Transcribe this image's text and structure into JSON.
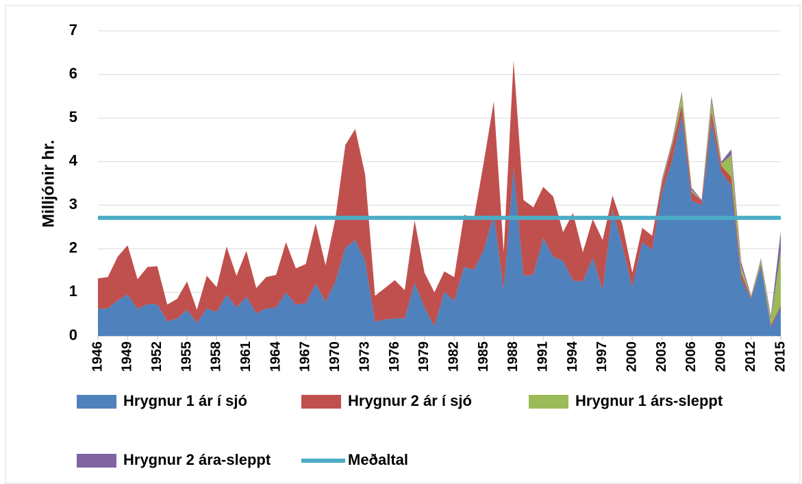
{
  "chart_data": {
    "type": "stacked-area",
    "ylabel": "Milljónir hr.",
    "x": [
      1946,
      1947,
      1948,
      1949,
      1950,
      1951,
      1952,
      1953,
      1954,
      1955,
      1956,
      1957,
      1958,
      1959,
      1960,
      1961,
      1962,
      1963,
      1964,
      1965,
      1966,
      1967,
      1968,
      1969,
      1970,
      1971,
      1972,
      1973,
      1974,
      1975,
      1976,
      1977,
      1978,
      1979,
      1980,
      1981,
      1982,
      1983,
      1984,
      1985,
      1986,
      1987,
      1988,
      1989,
      1990,
      1991,
      1992,
      1993,
      1994,
      1995,
      1996,
      1997,
      1998,
      1999,
      2000,
      2001,
      2002,
      2003,
      2004,
      2005,
      2006,
      2007,
      2008,
      2009,
      2010,
      2011,
      2012,
      2013,
      2014,
      2015
    ],
    "xlim": [
      1946,
      2015
    ],
    "xticks": [
      1946,
      1949,
      1952,
      1955,
      1958,
      1961,
      1964,
      1967,
      1970,
      1973,
      1976,
      1979,
      1982,
      1985,
      1988,
      1991,
      1994,
      1997,
      2000,
      2003,
      2006,
      2009,
      2012,
      2015
    ],
    "ylim": [
      0,
      7
    ],
    "yticks": [
      0,
      1,
      2,
      3,
      4,
      5,
      6,
      7
    ],
    "grid": true,
    "series": [
      {
        "name": "Hrygnur 1 ár í sjó",
        "color": "#4f81bd",
        "values": [
          0.62,
          0.63,
          0.82,
          0.95,
          0.62,
          0.73,
          0.73,
          0.33,
          0.4,
          0.6,
          0.3,
          0.63,
          0.55,
          0.95,
          0.65,
          0.9,
          0.52,
          0.63,
          0.65,
          1.0,
          0.72,
          0.75,
          1.2,
          0.78,
          1.25,
          2.02,
          2.2,
          1.72,
          0.32,
          0.38,
          0.4,
          0.4,
          1.22,
          0.65,
          0.22,
          1.02,
          0.8,
          1.58,
          1.52,
          1.98,
          2.8,
          1.05,
          3.85,
          1.38,
          1.4,
          2.25,
          1.82,
          1.72,
          1.27,
          1.25,
          1.8,
          1.05,
          2.9,
          2.05,
          1.12,
          2.15,
          1.98,
          3.28,
          4.0,
          5.05,
          3.1,
          3.0,
          4.9,
          3.75,
          3.45,
          1.3,
          0.85,
          1.6,
          0.2,
          0.65
        ]
      },
      {
        "name": "Hrygnur 2 ár í sjó",
        "color": "#c0504d",
        "values": [
          0.7,
          0.72,
          1.0,
          1.13,
          0.68,
          0.85,
          0.87,
          0.39,
          0.45,
          0.65,
          0.3,
          0.75,
          0.57,
          1.1,
          0.73,
          1.05,
          0.58,
          0.72,
          0.75,
          1.15,
          0.83,
          0.9,
          1.38,
          0.84,
          1.45,
          2.36,
          2.55,
          1.98,
          0.6,
          0.72,
          0.88,
          0.65,
          1.43,
          0.8,
          0.78,
          0.46,
          0.55,
          1.2,
          1.18,
          2.02,
          2.58,
          0.87,
          2.47,
          1.74,
          1.55,
          1.17,
          1.38,
          0.66,
          1.55,
          0.67,
          0.88,
          1.15,
          0.32,
          0.5,
          0.33,
          0.33,
          0.32,
          0.22,
          0.35,
          0.25,
          0.2,
          0.1,
          0.25,
          0.15,
          0.2,
          0.15,
          0.03,
          0.05,
          0.05,
          0.05
        ]
      },
      {
        "name": "Hrygnur 1 árs-sleppt",
        "color": "#9bbb59",
        "values": [
          0,
          0,
          0,
          0,
          0,
          0,
          0,
          0,
          0,
          0,
          0,
          0,
          0,
          0,
          0,
          0,
          0,
          0,
          0,
          0,
          0,
          0,
          0,
          0,
          0,
          0,
          0,
          0,
          0,
          0,
          0,
          0,
          0,
          0,
          0,
          0,
          0,
          0,
          0,
          0,
          0,
          0,
          0,
          0,
          0,
          0,
          0,
          0,
          0,
          0,
          0,
          0,
          0,
          0,
          0,
          0,
          0,
          0.05,
          0.05,
          0.25,
          0.05,
          0,
          0.25,
          0.05,
          0.5,
          0.15,
          0.02,
          0.1,
          0.13,
          1.25
        ]
      },
      {
        "name": "Hrygnur 2 ára-sleppt",
        "color": "#8064a2",
        "values": [
          0,
          0,
          0,
          0,
          0,
          0,
          0,
          0,
          0,
          0,
          0,
          0,
          0,
          0,
          0,
          0,
          0,
          0,
          0,
          0,
          0,
          0,
          0,
          0,
          0,
          0,
          0,
          0,
          0,
          0,
          0,
          0,
          0,
          0,
          0,
          0,
          0,
          0,
          0,
          0,
          0,
          0,
          0,
          0,
          0,
          0,
          0,
          0,
          0,
          0,
          0,
          0,
          0,
          0,
          0,
          0,
          0,
          0.05,
          0.05,
          0.05,
          0.05,
          0.02,
          0.1,
          0.05,
          0.13,
          0.1,
          0.02,
          0.03,
          0.07,
          0.45
        ]
      },
      {
        "name": "Meðaltal",
        "type": "line",
        "color": "#4bacc6",
        "values": [
          2.71,
          2.71,
          2.71,
          2.71,
          2.71,
          2.71,
          2.71,
          2.71,
          2.71,
          2.71,
          2.71,
          2.71,
          2.71,
          2.71,
          2.71,
          2.71,
          2.71,
          2.71,
          2.71,
          2.71,
          2.71,
          2.71,
          2.71,
          2.71,
          2.71,
          2.71,
          2.71,
          2.71,
          2.71,
          2.71,
          2.71,
          2.71,
          2.71,
          2.71,
          2.71,
          2.71,
          2.71,
          2.71,
          2.71,
          2.71,
          2.71,
          2.71,
          2.71,
          2.71,
          2.71,
          2.71,
          2.71,
          2.71,
          2.71,
          2.71,
          2.71,
          2.71,
          2.71,
          2.71,
          2.71,
          2.71,
          2.71,
          2.71,
          2.71,
          2.71,
          2.71,
          2.71,
          2.71,
          2.71,
          2.71,
          2.71,
          2.71,
          2.71,
          2.71,
          2.71
        ]
      }
    ]
  }
}
